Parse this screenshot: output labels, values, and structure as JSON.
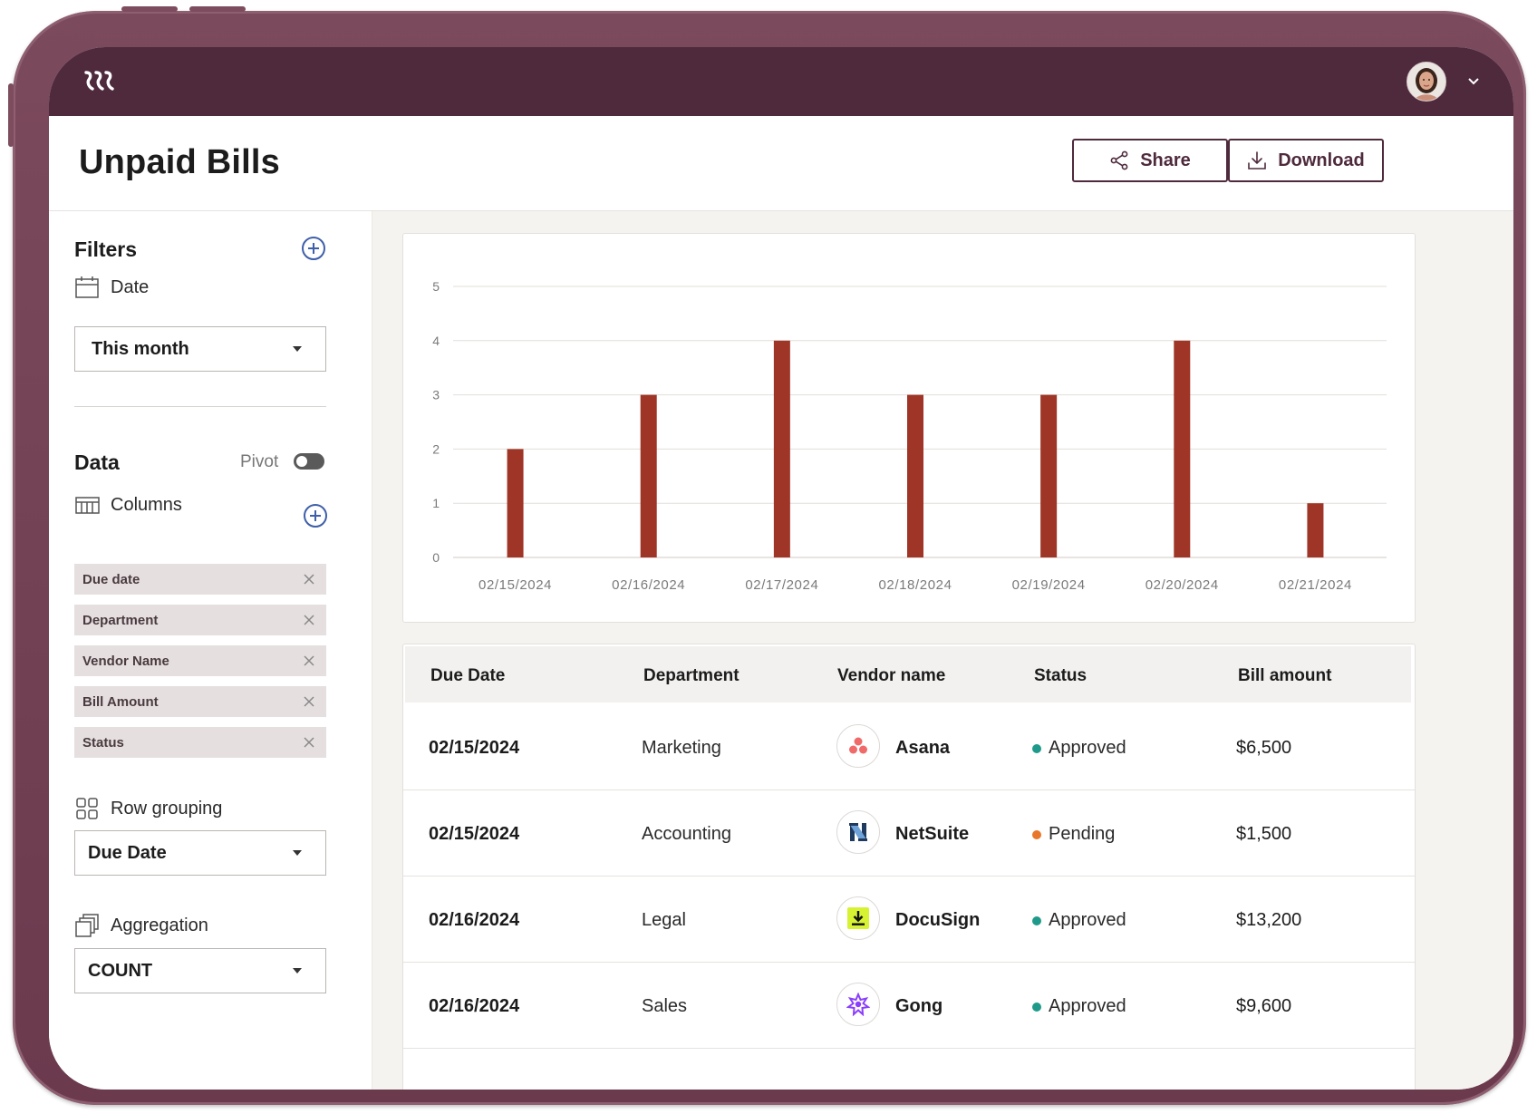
{
  "app": {
    "title": "Unpaid Bills",
    "accent": "#4e2a3c",
    "bar_color": "#9e3527"
  },
  "header": {
    "share_label": "Share",
    "download_label": "Download"
  },
  "sidebar": {
    "filters_title": "Filters",
    "date_label": "Date",
    "date_value": "This month",
    "data_title": "Data",
    "pivot_label": "Pivot",
    "pivot_on": false,
    "columns_label": "Columns",
    "column_chips": [
      "Due date",
      "Department",
      "Vendor Name",
      "Bill Amount",
      "Status"
    ],
    "row_grouping_label": "Row grouping",
    "row_grouping_value": "Due Date",
    "aggregation_label": "Aggregation",
    "aggregation_value": "COUNT"
  },
  "chart_data": {
    "type": "bar",
    "categories": [
      "02/15/2024",
      "02/16/2024",
      "02/17/2024",
      "02/18/2024",
      "02/19/2024",
      "02/20/2024",
      "02/21/2024"
    ],
    "values": [
      2,
      3,
      4,
      3,
      3,
      4,
      1
    ],
    "yticks": [
      0,
      1,
      2,
      3,
      4,
      5
    ],
    "ylim": [
      0,
      5
    ],
    "title": "",
    "xlabel": "",
    "ylabel": "",
    "grid": true
  },
  "table": {
    "headers": [
      "Due Date",
      "Department",
      "Vendor name",
      "Status",
      "Bill amount"
    ],
    "rows": [
      {
        "due_date": "02/15/2024",
        "department": "Marketing",
        "vendor": "Asana",
        "vendor_icon": "asana-icon",
        "status": "Approved",
        "status_color": "#1f9a8a",
        "amount": "$6,500"
      },
      {
        "due_date": "02/15/2024",
        "department": "Accounting",
        "vendor": "NetSuite",
        "vendor_icon": "netsuite-icon",
        "status": "Pending",
        "status_color": "#e8762b",
        "amount": "$1,500"
      },
      {
        "due_date": "02/16/2024",
        "department": "Legal",
        "vendor": "DocuSign",
        "vendor_icon": "docusign-icon",
        "status": "Approved",
        "status_color": "#1f9a8a",
        "amount": "$13,200"
      },
      {
        "due_date": "02/16/2024",
        "department": "Sales",
        "vendor": "Gong",
        "vendor_icon": "gong-icon",
        "status": "Approved",
        "status_color": "#1f9a8a",
        "amount": "$9,600"
      }
    ]
  }
}
